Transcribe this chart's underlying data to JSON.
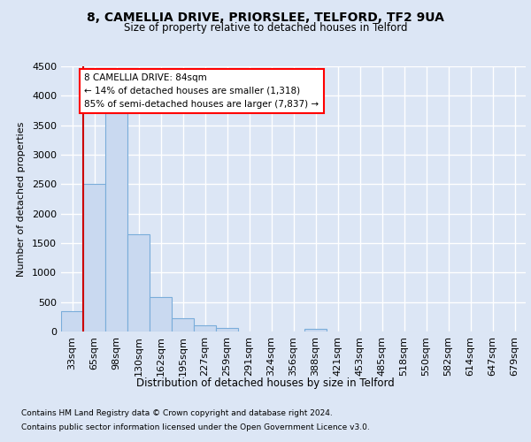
{
  "title1": "8, CAMELLIA DRIVE, PRIORSLEE, TELFORD, TF2 9UA",
  "title2": "Size of property relative to detached houses in Telford",
  "xlabel": "Distribution of detached houses by size in Telford",
  "ylabel": "Number of detached properties",
  "categories": [
    "33sqm",
    "65sqm",
    "98sqm",
    "130sqm",
    "162sqm",
    "195sqm",
    "227sqm",
    "259sqm",
    "291sqm",
    "324sqm",
    "356sqm",
    "388sqm",
    "421sqm",
    "453sqm",
    "485sqm",
    "518sqm",
    "550sqm",
    "582sqm",
    "614sqm",
    "647sqm",
    "679sqm"
  ],
  "values": [
    350,
    2500,
    3700,
    1650,
    580,
    220,
    100,
    60,
    0,
    0,
    0,
    50,
    0,
    0,
    0,
    0,
    0,
    0,
    0,
    0,
    0
  ],
  "bar_color": "#c9d9f0",
  "bar_edge_color": "#7aadda",
  "annotation_text": "8 CAMELLIA DRIVE: 84sqm\n← 14% of detached houses are smaller (1,318)\n85% of semi-detached houses are larger (7,837) →",
  "ylim": [
    0,
    4500
  ],
  "yticks": [
    0,
    500,
    1000,
    1500,
    2000,
    2500,
    3000,
    3500,
    4000,
    4500
  ],
  "vline_color": "#cc0000",
  "footer1": "Contains HM Land Registry data © Crown copyright and database right 2024.",
  "footer2": "Contains public sector information licensed under the Open Government Licence v3.0.",
  "bg_color": "#dce6f5",
  "plot_bg_color": "#dce6f5"
}
